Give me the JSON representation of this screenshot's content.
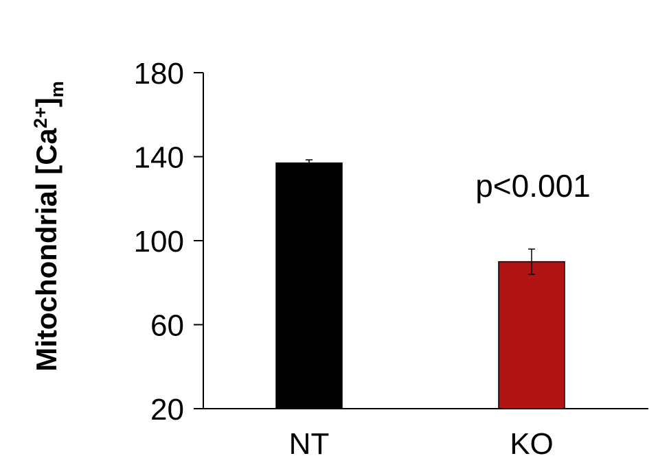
{
  "chart_data": {
    "type": "bar",
    "title": "",
    "xlabel": "",
    "ylabel": {
      "main": "Mitochondrial [Ca",
      "superscript": "2+",
      "close": "]",
      "subscript": "m"
    },
    "categories": [
      "NT",
      "KO"
    ],
    "values": [
      137,
      90
    ],
    "errors": [
      1.5,
      6
    ],
    "colors": [
      "#000000",
      "#b01414"
    ],
    "ylim": [
      20,
      180
    ],
    "yticks": [
      "20",
      "60",
      "100",
      "140",
      "180"
    ],
    "grid": false,
    "annotation": "p<0.001"
  }
}
